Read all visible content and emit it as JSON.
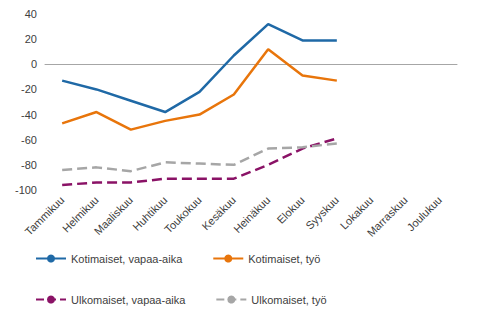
{
  "chart_data": {
    "type": "line",
    "categories": [
      "Tammikuu",
      "Helmikuu",
      "Maaliskuu",
      "Huhtikuu",
      "Toukokuu",
      "Kesäkuu",
      "Heinäkuu",
      "Elokuu",
      "Syyskuu",
      "Lokakuu",
      "Marraskuu",
      "Joulukuu"
    ],
    "series": [
      {
        "name": "Kotimaiset, vapaa-aika",
        "color": "#1f69a6",
        "line_style": "solid",
        "values": [
          -13,
          -20,
          -29,
          -38,
          -22,
          7,
          32,
          19,
          19,
          null,
          null,
          null
        ]
      },
      {
        "name": "Kotimaiset, työ",
        "color": "#e8750b",
        "line_style": "solid",
        "values": [
          -47,
          -38,
          -52,
          -45,
          -40,
          -24,
          12,
          -9,
          -13,
          null,
          null,
          null
        ]
      },
      {
        "name": "Ulkomaiset, vapaa-aika",
        "color": "#8a1266",
        "line_style": "dashed",
        "values": [
          -96,
          -94,
          -94,
          -91,
          -91,
          -91,
          -80,
          -67,
          -59,
          null,
          null,
          null
        ]
      },
      {
        "name": "Ulkomaiset, työ",
        "color": "#a6a6a6",
        "line_style": "dashed",
        "values": [
          -84,
          -82,
          -85,
          -78,
          -79,
          -80,
          -67,
          -66,
          -63,
          null,
          null,
          null
        ]
      }
    ],
    "ylim": [
      -100,
      40
    ],
    "yticks": [
      -100,
      -80,
      -60,
      -40,
      -20,
      0,
      20,
      40
    ],
    "grid": false,
    "legend": "bottom"
  }
}
